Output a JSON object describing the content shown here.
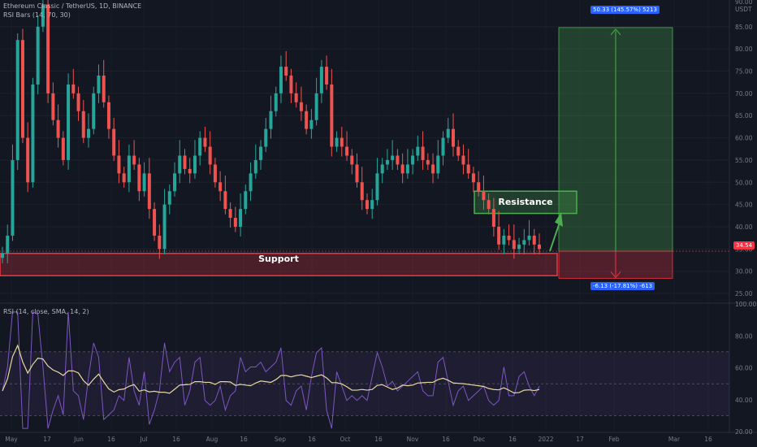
{
  "header": {
    "symbol_line": "Ethereum Classic / TetherUS, 1D, BINANCE",
    "indicator_line": "RSI Bars (14, 70, 30)"
  },
  "rsi_pane": {
    "legend": "RSI (14, close, SMA, 14, 2)",
    "levels": [
      "100.00",
      "80.00",
      "60.00",
      "40.00",
      "20.00"
    ]
  },
  "price_axis": {
    "currency": "USDT",
    "top_label": "90.00",
    "labels": [
      "85.00",
      "80.00",
      "75.00",
      "70.00",
      "65.00",
      "60.00",
      "55.00",
      "50.00",
      "45.00",
      "40.00",
      "35.00",
      "30.00",
      "25.00"
    ],
    "last_price": "34.54"
  },
  "time_axis": {
    "labels": [
      "May",
      "17",
      "Jun",
      "16",
      "Jul",
      "16",
      "Aug",
      "16",
      "Sep",
      "16",
      "Oct",
      "16",
      "Nov",
      "16",
      "Dec",
      "16",
      "2022",
      "17",
      "Feb",
      "Mar",
      "16"
    ]
  },
  "annotations": {
    "support_label": "Support",
    "resistance_label": "Resistance",
    "target_tag": "50.33 (145.57%) 5213",
    "stop_tag": "-6.13 (-17.81%) -613"
  },
  "colors": {
    "background": "#131722",
    "up": "#26a69a",
    "down": "#ef5350",
    "support": "#f23645",
    "resistance": "#4caf50",
    "rsi_line": "#7e57c2",
    "rsi_ma": "#e8d9a0",
    "tag_blue": "#2962ff"
  },
  "chart_data": {
    "type": "candlestick",
    "ylim": [
      23,
      91
    ],
    "rsi_ylim": [
      20,
      100
    ],
    "support_zone": [
      29,
      34
    ],
    "resistance_zone": [
      43,
      48
    ],
    "target_price": 84.8,
    "stop_price": 28.4,
    "entry_price": 34.5,
    "closes": [
      34,
      38,
      55,
      82,
      60,
      50,
      72,
      85,
      90,
      70,
      64,
      60,
      55,
      72,
      70,
      66,
      60,
      62,
      70,
      74,
      68,
      62,
      56,
      52,
      50,
      56,
      54,
      48,
      52,
      44,
      38,
      35,
      45,
      48,
      52,
      56,
      53,
      52,
      56,
      60,
      58,
      54,
      50,
      48,
      44,
      42,
      40,
      44,
      48,
      52,
      55,
      58,
      62,
      66,
      70,
      76,
      74,
      70,
      68,
      66,
      62,
      64,
      70,
      76,
      72,
      58,
      60,
      58,
      56,
      54,
      50,
      46,
      44,
      46,
      52,
      54,
      55,
      56,
      54,
      52,
      54,
      56,
      58,
      55,
      54,
      52,
      56,
      60,
      62,
      58,
      56,
      54,
      52,
      50,
      48,
      46,
      44,
      40,
      36,
      38,
      37,
      35,
      36,
      37,
      38,
      36,
      35
    ]
  }
}
